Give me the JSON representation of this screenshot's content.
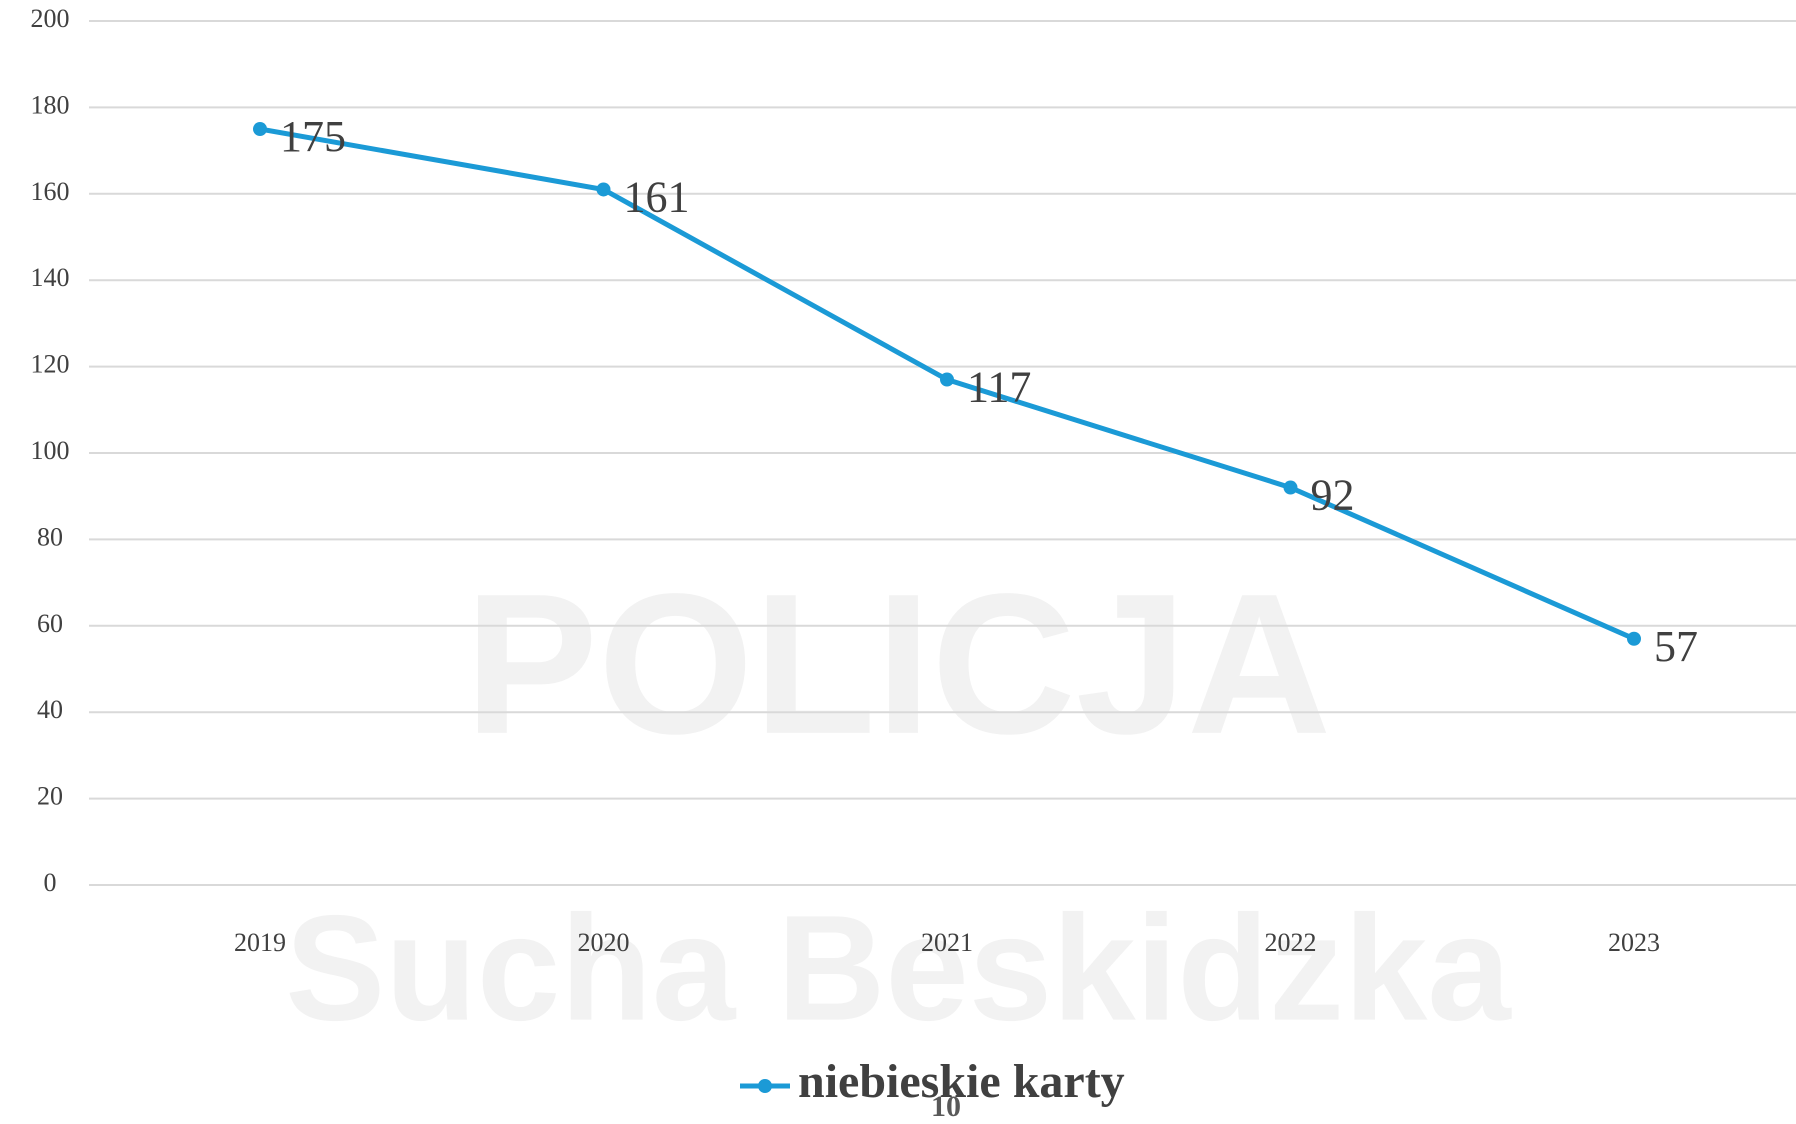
{
  "watermark": [
    "POLICJA",
    "Sucha Beskidzka"
  ],
  "page_number": "10",
  "chart_data": {
    "type": "line",
    "categories": [
      "2019",
      "2020",
      "2021",
      "2022",
      "2023"
    ],
    "series": [
      {
        "name": "niebieskie karty",
        "color": "#1b9ad6",
        "values": [
          175,
          161,
          117,
          92,
          57
        ]
      }
    ],
    "ylim": [
      0,
      200
    ],
    "yticks": [
      0,
      20,
      40,
      60,
      80,
      100,
      120,
      140,
      160,
      180,
      200
    ],
    "grid": true,
    "legend": "bottom"
  }
}
